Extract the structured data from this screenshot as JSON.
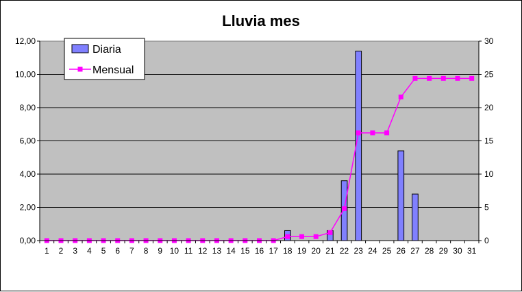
{
  "chart_data": {
    "type": "bar",
    "title": "Lluvia mes",
    "categories": [
      "1",
      "2",
      "3",
      "4",
      "5",
      "6",
      "7",
      "8",
      "9",
      "10",
      "11",
      "12",
      "13",
      "14",
      "15",
      "16",
      "17",
      "18",
      "19",
      "20",
      "21",
      "22",
      "23",
      "24",
      "25",
      "26",
      "27",
      "28",
      "29",
      "30",
      "31"
    ],
    "series": [
      {
        "name": "Diaria",
        "type": "bar",
        "axis": "left",
        "color": "#8080ff",
        "values": [
          0,
          0,
          0,
          0,
          0,
          0,
          0,
          0,
          0,
          0,
          0,
          0,
          0,
          0,
          0,
          0,
          0,
          0.6,
          0,
          0,
          0.6,
          3.6,
          11.4,
          0,
          0,
          5.4,
          2.8,
          0,
          0,
          0,
          0
        ]
      },
      {
        "name": "Mensual",
        "type": "line",
        "axis": "right",
        "color": "#ff00ff",
        "values": [
          0,
          0,
          0,
          0,
          0,
          0,
          0,
          0,
          0,
          0,
          0,
          0,
          0,
          0,
          0,
          0,
          0,
          0.6,
          0.6,
          0.6,
          1.2,
          4.8,
          16.2,
          16.2,
          16.2,
          21.6,
          24.4,
          24.4,
          24.4,
          24.4,
          24.4
        ]
      }
    ],
    "y_left": {
      "range": [
        0,
        12
      ],
      "ticks": [
        "0,00",
        "2,00",
        "4,00",
        "6,00",
        "8,00",
        "10,00",
        "12,00"
      ]
    },
    "y_right": {
      "range": [
        0,
        30
      ],
      "ticks": [
        "0",
        "5",
        "10",
        "15",
        "20",
        "25",
        "30"
      ]
    },
    "grid": true,
    "plot_background": "#c0c0c0",
    "legend_position": "top-left"
  }
}
